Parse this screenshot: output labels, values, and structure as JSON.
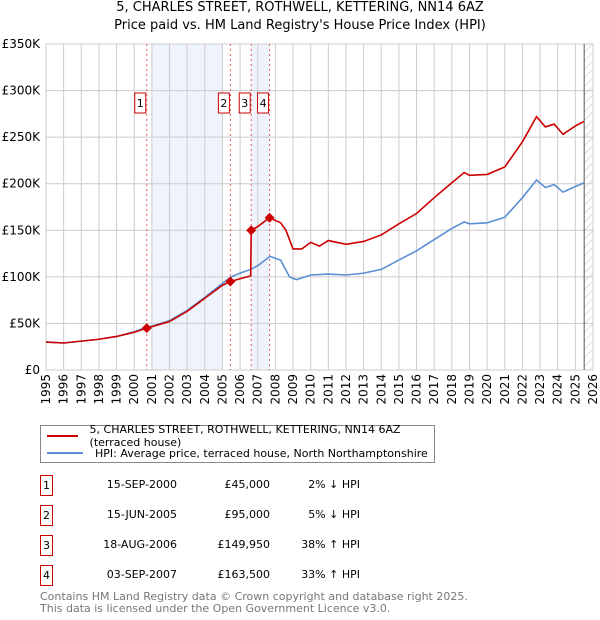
{
  "chart_data": {
    "type": "line",
    "title": "5, CHARLES STREET, ROTHWELL, KETTERING, NN14 6AZ",
    "subtitle": "Price paid vs. HM Land Registry's House Price Index (HPI)",
    "xlim": [
      1995,
      2026
    ],
    "ylim": [
      0,
      350000
    ],
    "x_ticks": [
      "1995",
      "1996",
      "1997",
      "1998",
      "1999",
      "2000",
      "2001",
      "2002",
      "2003",
      "2004",
      "2005",
      "2006",
      "2007",
      "2008",
      "2009",
      "2010",
      "2011",
      "2012",
      "2013",
      "2014",
      "2015",
      "2016",
      "2017",
      "2018",
      "2019",
      "2020",
      "2021",
      "2022",
      "2023",
      "2024",
      "2025",
      "2026"
    ],
    "y_ticks": [
      {
        "v": 0,
        "l": "£0"
      },
      {
        "v": 50000,
        "l": "£50K"
      },
      {
        "v": 100000,
        "l": "£100K"
      },
      {
        "v": 150000,
        "l": "£150K"
      },
      {
        "v": 200000,
        "l": "£200K"
      },
      {
        "v": 250000,
        "l": "£250K"
      },
      {
        "v": 300000,
        "l": "£300K"
      },
      {
        "v": 350000,
        "l": "£350K"
      }
    ],
    "series": [
      {
        "name": "5, CHARLES STREET, ROTHWELL, KETTERING, NN14 6AZ (terraced house)",
        "color": "#cc0000",
        "points": [
          [
            1995,
            30000
          ],
          [
            1996,
            29000
          ],
          [
            1997,
            31000
          ],
          [
            1998,
            33000
          ],
          [
            1999,
            36000
          ],
          [
            2000,
            40500
          ],
          [
            2000.71,
            45000
          ],
          [
            2001,
            46500
          ],
          [
            2002,
            52000
          ],
          [
            2003,
            63000
          ],
          [
            2004,
            77000
          ],
          [
            2005,
            91000
          ],
          [
            2005.45,
            95000
          ],
          [
            2006,
            98000
          ],
          [
            2006.6,
            101000
          ],
          [
            2006.63,
            149950
          ],
          [
            2007,
            154000
          ],
          [
            2007.67,
            163500
          ],
          [
            2008.3,
            158000
          ],
          [
            2008.6,
            150000
          ],
          [
            2009,
            130000
          ],
          [
            2009.5,
            130000
          ],
          [
            2010,
            137000
          ],
          [
            2010.5,
            133000
          ],
          [
            2011,
            139000
          ],
          [
            2012,
            135000
          ],
          [
            2013,
            138000
          ],
          [
            2014,
            145000
          ],
          [
            2015,
            157000
          ],
          [
            2016,
            168000
          ],
          [
            2017,
            185000
          ],
          [
            2018,
            201000
          ],
          [
            2018.7,
            212000
          ],
          [
            2019,
            209000
          ],
          [
            2020,
            210000
          ],
          [
            2021,
            218000
          ],
          [
            2022,
            245000
          ],
          [
            2022.8,
            272000
          ],
          [
            2023.3,
            261000
          ],
          [
            2023.8,
            264000
          ],
          [
            2024.3,
            253000
          ],
          [
            2025,
            262000
          ],
          [
            2025.5,
            267000
          ]
        ]
      },
      {
        "name": "HPI: Average price, terraced house, North Northamptonshire",
        "color": "#5b8fd4",
        "points": [
          [
            1995,
            30000
          ],
          [
            1996,
            29000
          ],
          [
            1997,
            31000
          ],
          [
            1998,
            33000
          ],
          [
            1999,
            36000
          ],
          [
            2000,
            41000
          ],
          [
            2000.7,
            46000
          ],
          [
            2001,
            47000
          ],
          [
            2002,
            53000
          ],
          [
            2003,
            64000
          ],
          [
            2004,
            78000
          ],
          [
            2005,
            93000
          ],
          [
            2005.5,
            100000
          ],
          [
            2006,
            104000
          ],
          [
            2006.6,
            108000
          ],
          [
            2007,
            112000
          ],
          [
            2007.7,
            122000
          ],
          [
            2008.3,
            118000
          ],
          [
            2008.8,
            100000
          ],
          [
            2009.2,
            97000
          ],
          [
            2010,
            102000
          ],
          [
            2011,
            103000
          ],
          [
            2012,
            102000
          ],
          [
            2013,
            104000
          ],
          [
            2014,
            108000
          ],
          [
            2015,
            118000
          ],
          [
            2016,
            128000
          ],
          [
            2017,
            140000
          ],
          [
            2018,
            152000
          ],
          [
            2018.7,
            159000
          ],
          [
            2019,
            157000
          ],
          [
            2020,
            158000
          ],
          [
            2021,
            164000
          ],
          [
            2022,
            185000
          ],
          [
            2022.8,
            204000
          ],
          [
            2023.3,
            196000
          ],
          [
            2023.8,
            199000
          ],
          [
            2024.3,
            191000
          ],
          [
            2025,
            197000
          ],
          [
            2025.5,
            201000
          ]
        ]
      }
    ],
    "sales": [
      {
        "n": "1",
        "x": 2000.71,
        "y": 45000,
        "date": "15-SEP-2000",
        "price": "£45,000",
        "hpi": "2% ↓ HPI"
      },
      {
        "n": "2",
        "x": 2005.45,
        "y": 95000,
        "date": "15-JUN-2005",
        "price": "£95,000",
        "hpi": "5% ↓ HPI"
      },
      {
        "n": "3",
        "x": 2006.63,
        "y": 149950,
        "date": "18-AUG-2006",
        "price": "£149,950",
        "hpi": "38% ↑ HPI"
      },
      {
        "n": "4",
        "x": 2007.67,
        "y": 163500,
        "date": "03-SEP-2007",
        "price": "£163,500",
        "hpi": "33% ↑ HPI"
      }
    ],
    "shaded_ranges": [
      [
        2001,
        2005
      ],
      [
        2006.63,
        2007.67
      ]
    ],
    "forecast_from": 2025.5
  },
  "footer": {
    "line1": "Contains HM Land Registry data © Crown copyright and database right 2025.",
    "line2": "This data is licensed under the Open Government Licence v3.0."
  }
}
